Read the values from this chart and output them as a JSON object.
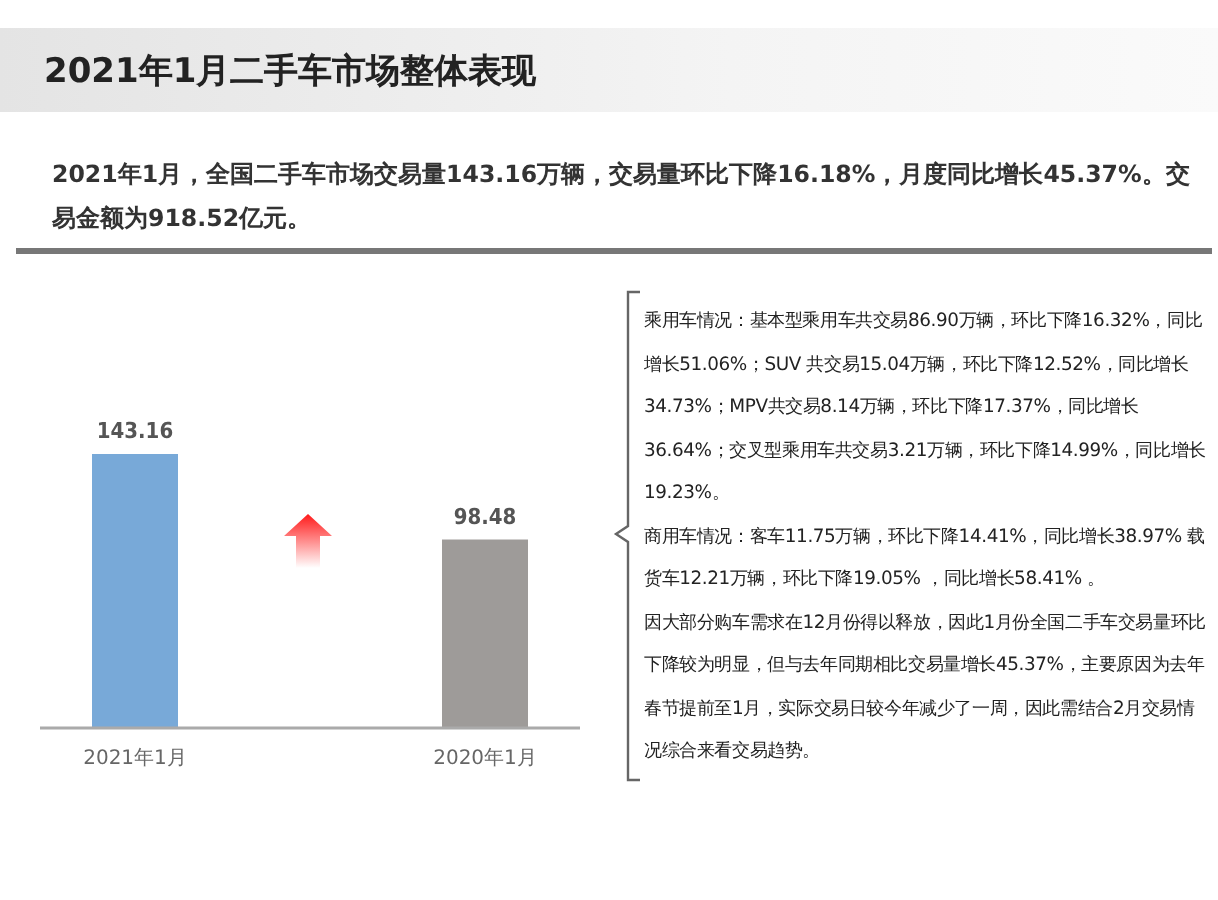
{
  "chart_data": {
    "type": "bar",
    "title": "2021年1月二手车市场整体表现",
    "subtitle": "2021年1月，全国二手车市场交易量143.16万辆，交易量环比下降16.18%，月度同比增长45.37%。交易金额为918.52亿元。",
    "categories": [
      "2021年1月",
      "2020年1月"
    ],
    "values": [
      143.16,
      98.48
    ],
    "colors": [
      "#78a9d8",
      "#9e9b99"
    ],
    "data_labels": true,
    "annotations": [
      "乘用车情况：基本型乘用车共交易86.90万辆，环比下降16.32%，同比增长51.06%；SUV 共交易15.04万辆，环比下降12.52%，同比增长34.73%；MPV共交易8.14万辆，环比下降17.37%，同比增长36.64%；交叉型乘用车共交易3.21万辆，环比下降14.99%，同比增长19.23%。",
      "商用车情况：客车11.75万辆，环比下降14.41%，同比增长38.97% 载货车12.21万辆，环比下降19.05% ，同比增长58.41% 。",
      "因大部分购车需求在12月份得以释放，因此1月份全国二手车交易量环比下降较为明显，但与去年同期相比交易量增长45.37%，主要原因为去年春节提前至1月，实际交易日较今年减少了一周，因此需结合2月交易情况综合来看交易趋势。"
    ]
  }
}
